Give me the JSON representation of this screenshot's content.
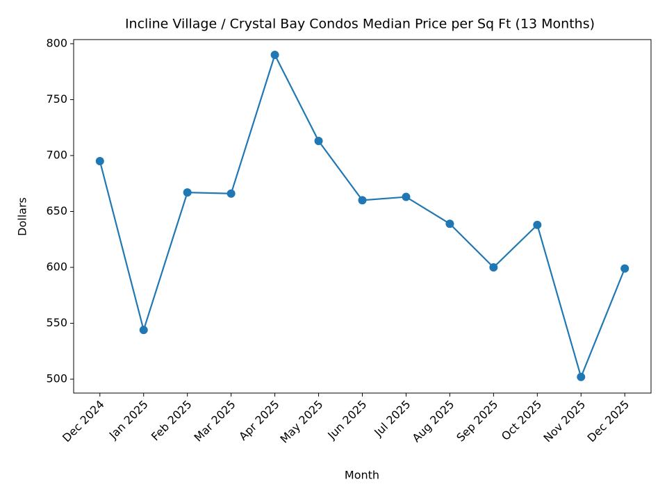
{
  "chart_data": {
    "type": "line",
    "title": "Incline Village / Crystal Bay Condos Median Price per Sq Ft (13 Months)",
    "x_label": "Month",
    "y_label": "Dollars",
    "categories": [
      "Dec 2024",
      "Jan 2025",
      "Feb 2025",
      "Mar 2025",
      "Apr 2025",
      "May 2025",
      "Jun 2025",
      "Jul 2025",
      "Aug 2025",
      "Sep 2025",
      "Oct 2025",
      "Nov 2025",
      "Dec 2025"
    ],
    "series": [
      {
        "name": "Median Price per Sq Ft",
        "color": "#1f77b4",
        "values": [
          695,
          544,
          667,
          666,
          790,
          713,
          660,
          663,
          639,
          600,
          638,
          502,
          599
        ]
      }
    ],
    "ylim": [
      487.6,
      803.7
    ],
    "yticks": [
      500,
      550,
      600,
      650,
      700,
      750,
      800
    ],
    "grid": false
  }
}
